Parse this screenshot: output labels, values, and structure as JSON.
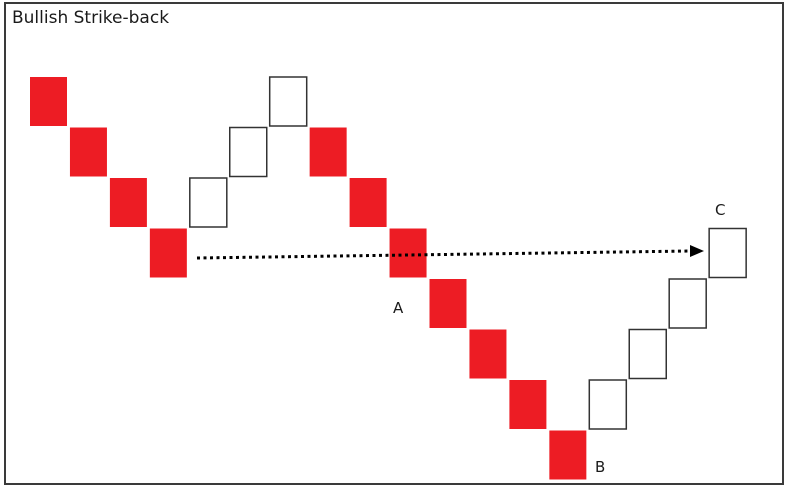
{
  "title": "Bullish Strike-back",
  "colors": {
    "down": "#ed1c24",
    "up": "#ffffff",
    "up_border": "#333333",
    "arrow": "#000000"
  },
  "bricks": [
    "down",
    "down",
    "down",
    "down",
    "up",
    "up",
    "up",
    "down",
    "down",
    "down",
    "down",
    "down",
    "down",
    "down",
    "up",
    "up",
    "up",
    "up"
  ],
  "labels": {
    "a": "A",
    "b": "B",
    "c": "C"
  }
}
